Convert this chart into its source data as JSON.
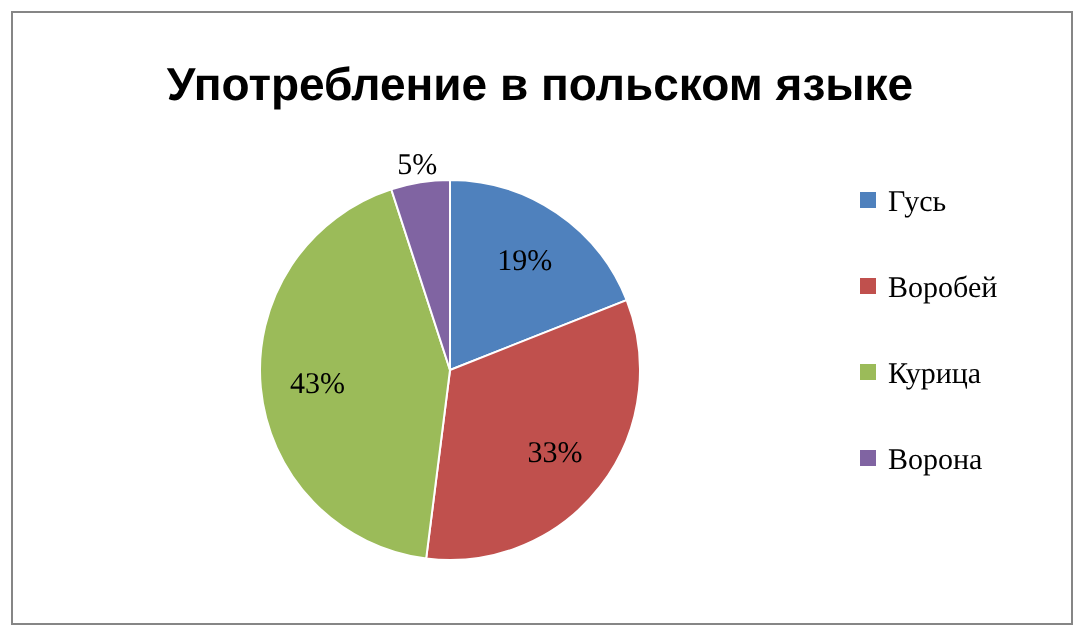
{
  "chart_data": {
    "type": "pie",
    "title": "Употребление в польском языке",
    "categories": [
      "Гусь",
      "Воробей",
      "Курица",
      "Ворона"
    ],
    "values": [
      19,
      33,
      43,
      5
    ],
    "colors": [
      "#4f81bd",
      "#c0504d",
      "#9bbb59",
      "#8064a2"
    ],
    "value_labels": [
      "19%",
      "33%",
      "43%",
      "5%"
    ],
    "legend": "right"
  }
}
